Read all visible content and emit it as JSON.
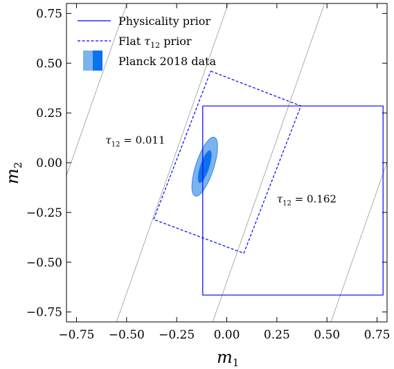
{
  "chart_data": {
    "type": "line",
    "title": "",
    "xlabel": "m",
    "xlabel_sub": "1",
    "ylabel": "m",
    "ylabel_sub": "2",
    "xlim": [
      -0.8,
      0.8
    ],
    "ylim": [
      -0.8,
      0.8
    ],
    "xticks": [
      -0.75,
      -0.5,
      -0.25,
      0.0,
      0.25,
      0.5,
      0.75
    ],
    "xtick_labels": [
      "−0.75",
      "−0.50",
      "−0.25",
      "0.00",
      "0.25",
      "0.50",
      "0.75"
    ],
    "yticks": [
      -0.75,
      -0.5,
      -0.25,
      0.0,
      0.25,
      0.5,
      0.75
    ],
    "ytick_labels": [
      "−0.75",
      "−0.50",
      "−0.25",
      "0.00",
      "0.25",
      "0.50",
      "0.75"
    ],
    "grid": false,
    "legend_position": "top-left",
    "series": [
      {
        "name": "Physicality prior",
        "style": "solid",
        "color": "#0000ff",
        "x": [
          -0.12,
          0.78,
          0.78,
          -0.12,
          -0.12
        ],
        "y": [
          0.285,
          0.285,
          -0.665,
          -0.665,
          0.285
        ]
      },
      {
        "name": "Flat τ₁₂ prior",
        "legend_main": "Flat ",
        "legend_tau": "τ",
        "legend_sub": "12",
        "legend_tail": " prior",
        "style": "dashed",
        "color": "#0000ff",
        "x": [
          -0.08,
          0.37,
          0.085,
          -0.365,
          -0.08
        ],
        "y": [
          0.46,
          0.285,
          -0.455,
          -0.285,
          0.46
        ]
      },
      {
        "name": "Planck 2018 data",
        "style": "filled-contour",
        "color_outer": "#7ab4ee",
        "color_inner": "#0a72f0",
        "ellipses": [
          {
            "level": "outer",
            "cx": -0.11,
            "cy": -0.02,
            "rx": 0.045,
            "ry": 0.155,
            "tilt_deg": 18
          },
          {
            "level": "inner",
            "cx": -0.11,
            "cy": -0.02,
            "rx": 0.022,
            "ry": 0.085,
            "tilt_deg": 18
          }
        ]
      }
    ],
    "reference_lines": [
      {
        "color": "#999999",
        "x": [
          -0.8,
          -0.08
        ],
        "y": [
          -0.065,
          2.0
        ]
      },
      {
        "color": "#999999",
        "x": [
          -0.55,
          0.17
        ],
        "y": [
          -0.8,
          1.265
        ]
      },
      {
        "color": "#999999",
        "x": [
          -0.07,
          0.65
        ],
        "y": [
          -0.8,
          1.265
        ]
      },
      {
        "color": "#999999",
        "x": [
          0.52,
          1.24
        ],
        "y": [
          -0.8,
          1.265
        ]
      }
    ],
    "annotations": [
      {
        "name": "tau-label-left",
        "tau": "τ",
        "sub": "12",
        "text": " = 0.011",
        "x": -0.605,
        "y": 0.095
      },
      {
        "name": "tau-label-right",
        "tau": "τ",
        "sub": "12",
        "text": " = 0.162",
        "x": 0.25,
        "y": -0.2
      }
    ]
  }
}
